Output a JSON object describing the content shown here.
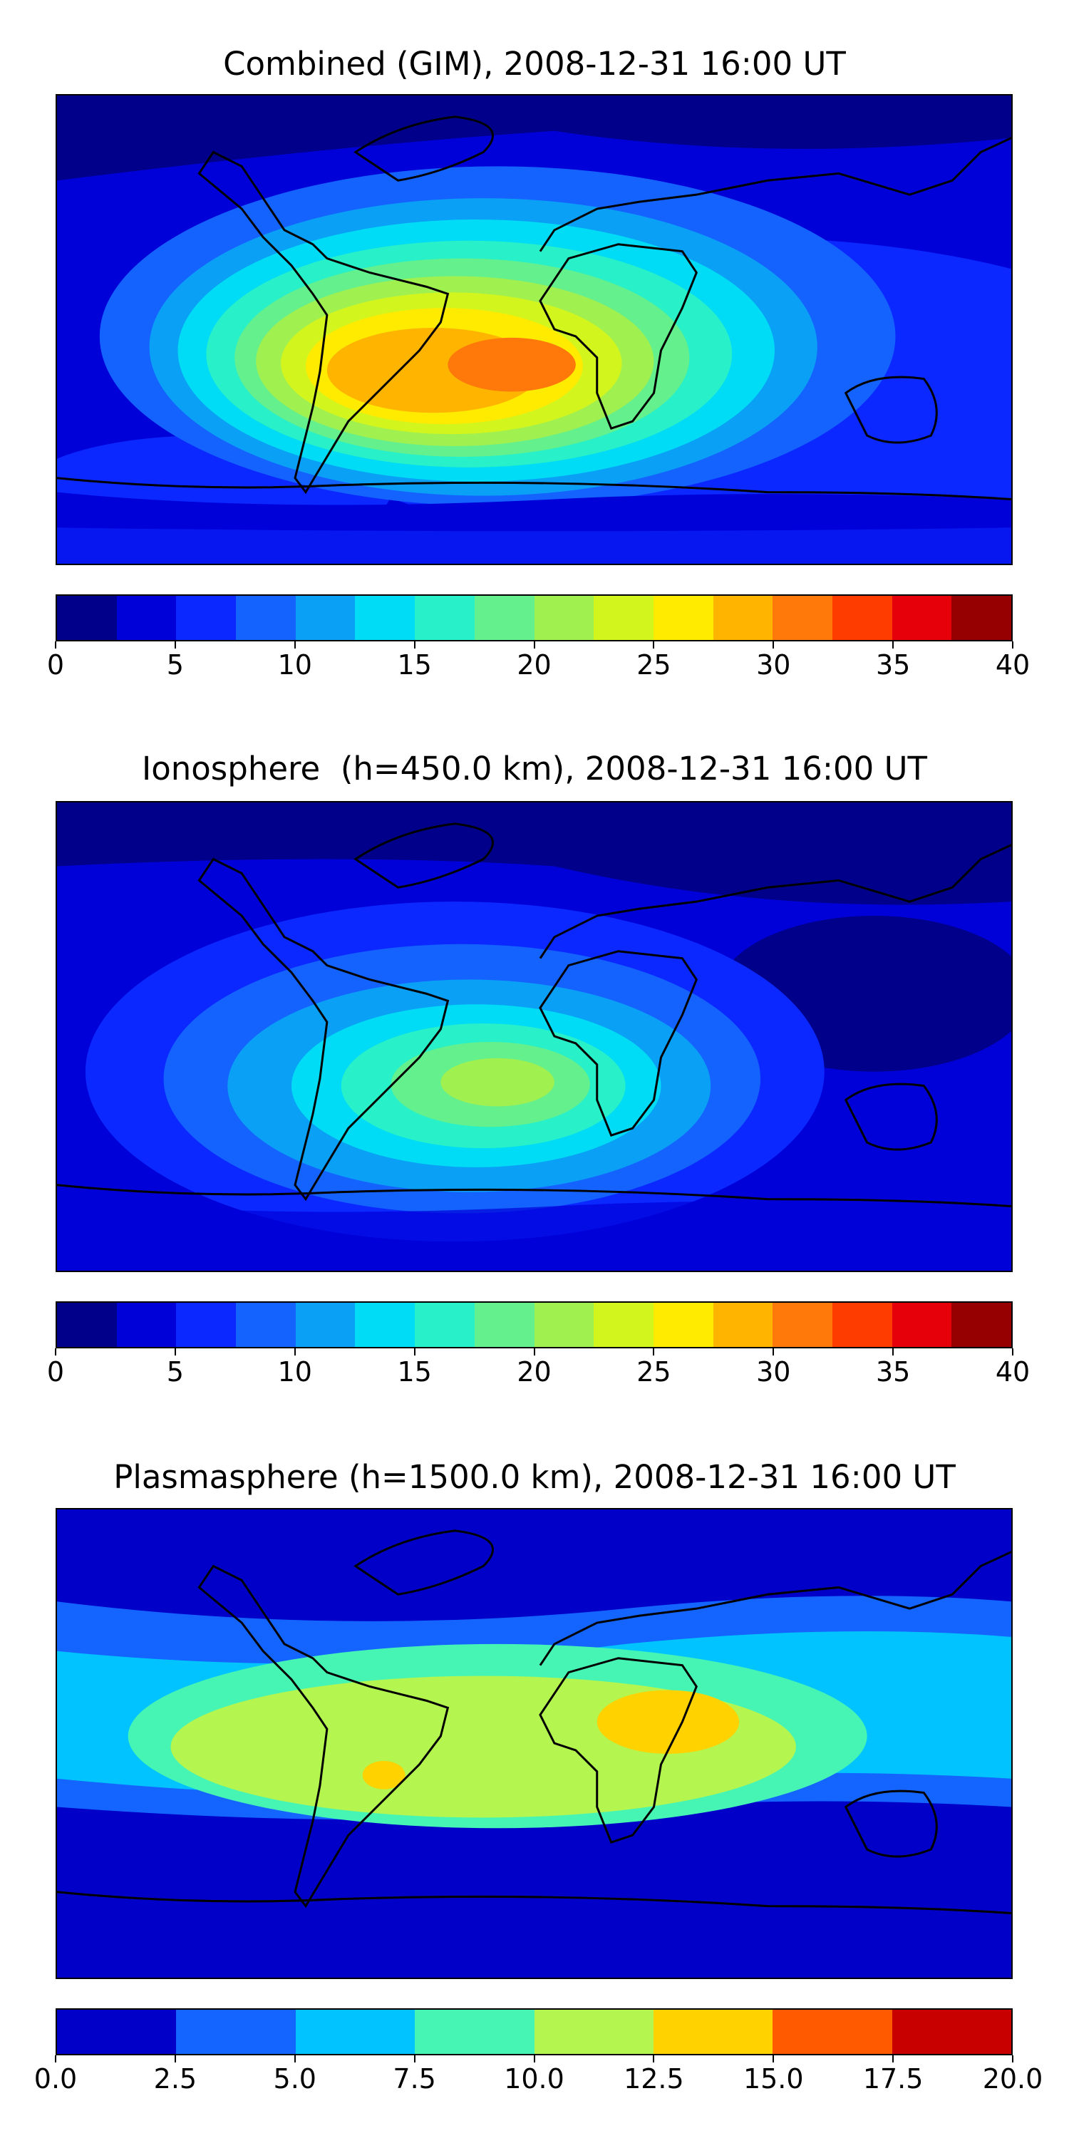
{
  "panels": [
    {
      "title": "Combined (GIM), 2008-12-31 16:00 UT",
      "colorbar": {
        "colors": [
          "#00008b",
          "#0000d8",
          "#0a28ff",
          "#1463ff",
          "#0aa0f5",
          "#00dcf5",
          "#28f0c8",
          "#64f08c",
          "#a0f050",
          "#d2f51e",
          "#ffeb00",
          "#ffb400",
          "#ff780a",
          "#ff3c00",
          "#e6000a",
          "#960000"
        ],
        "ticks": [
          "0",
          "5",
          "10",
          "15",
          "20",
          "25",
          "30",
          "35",
          "40"
        ]
      }
    },
    {
      "title": "Ionosphere  (h=450.0 km), 2008-12-31 16:00 UT",
      "colorbar": {
        "colors": [
          "#00008b",
          "#0000d8",
          "#0a28ff",
          "#1463ff",
          "#0aa0f5",
          "#00dcf5",
          "#28f0c8",
          "#64f08c",
          "#a0f050",
          "#d2f51e",
          "#ffeb00",
          "#ffb400",
          "#ff780a",
          "#ff3c00",
          "#e6000a",
          "#960000"
        ],
        "ticks": [
          "0",
          "5",
          "10",
          "15",
          "20",
          "25",
          "30",
          "35",
          "40"
        ]
      }
    },
    {
      "title": "Plasmasphere (h=1500.0 km), 2008-12-31 16:00 UT",
      "colorbar": {
        "colors": [
          "#0000c8",
          "#1464ff",
          "#00c3ff",
          "#46f5b4",
          "#b4f550",
          "#ffd200",
          "#ff5a00",
          "#c80000"
        ],
        "ticks": [
          "0.0",
          "2.5",
          "5.0",
          "7.5",
          "10.0",
          "12.5",
          "15.0",
          "17.5",
          "20.0"
        ]
      }
    }
  ]
}
